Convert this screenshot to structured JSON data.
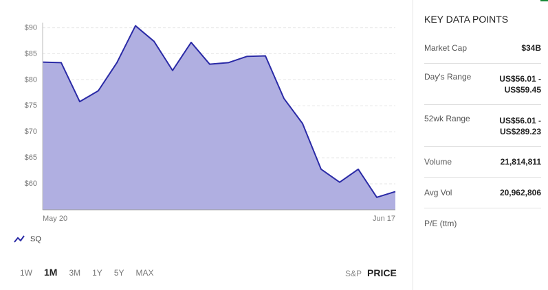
{
  "chart_data": {
    "type": "area",
    "categories": [
      "May 20",
      null,
      null,
      null,
      null,
      null,
      null,
      null,
      null,
      null,
      null,
      null,
      null,
      null,
      null,
      null,
      null,
      null,
      null,
      "Jun 17"
    ],
    "series": [
      {
        "name": "SQ",
        "color": "#2a2aa6",
        "fill": "#b0afe1",
        "values": [
          83.4,
          83.3,
          75.8,
          77.9,
          83.3,
          90.4,
          87.4,
          81.8,
          87.2,
          83.0,
          83.3,
          84.5,
          84.6,
          76.4,
          71.6,
          62.8,
          60.3,
          62.8,
          57.4,
          58.5
        ]
      }
    ],
    "ylim": [
      55,
      91
    ],
    "yticks": [
      {
        "value": 60,
        "label": "$60"
      },
      {
        "value": 65,
        "label": "$65"
      },
      {
        "value": 70,
        "label": "$70"
      },
      {
        "value": 75,
        "label": "$75"
      },
      {
        "value": 80,
        "label": "$80"
      },
      {
        "value": 85,
        "label": "$85"
      },
      {
        "value": 90,
        "label": "$90"
      }
    ],
    "grid": true
  },
  "controls": {
    "ranges": [
      "1W",
      "1M",
      "3M",
      "1Y",
      "5Y",
      "MAX"
    ],
    "modes": [
      "S&P",
      "PRICE"
    ]
  },
  "key_data": {
    "title": "KEY DATA POINTS",
    "rows": [
      {
        "label": "Market Cap",
        "value": "$34B"
      },
      {
        "label": "Day's Range",
        "value": "US$56.01 - US$59.45"
      },
      {
        "label": "52wk Range",
        "value": "US$56.01 - US$289.23"
      },
      {
        "label": "Volume",
        "value": "21,814,811"
      },
      {
        "label": "Avg Vol",
        "value": "20,962,806"
      },
      {
        "label": "P/E (ttm)"
      }
    ]
  }
}
